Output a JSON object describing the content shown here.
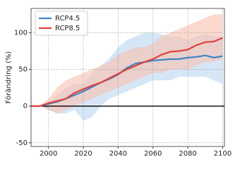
{
  "chart_data": {
    "type": "line",
    "y_label": "Förändring (%)",
    "x": [
      1990,
      1995,
      2000,
      2005,
      2010,
      2015,
      2020,
      2025,
      2030,
      2035,
      2040,
      2045,
      2050,
      2055,
      2060,
      2065,
      2070,
      2075,
      2080,
      2085,
      2090,
      2095,
      2100
    ],
    "xlim": [
      1990,
      2101
    ],
    "xticks": [
      2000,
      2020,
      2040,
      2060,
      2080,
      2100
    ],
    "ylim": [
      -55,
      133
    ],
    "yticks": [
      -50,
      0,
      50,
      100
    ],
    "grid": true,
    "legend": "upper left",
    "series": [
      {
        "name": "RCP4.5",
        "color": "#3a86c8",
        "band_color": "#b9d7f0",
        "values": [
          0,
          0,
          3,
          6,
          10,
          15,
          20,
          26,
          32,
          37,
          43,
          52,
          58,
          60,
          62,
          63,
          64,
          64,
          66,
          67,
          69,
          66,
          68
        ],
        "upper": [
          0,
          0,
          5,
          15,
          25,
          30,
          30,
          45,
          55,
          65,
          80,
          90,
          95,
          100,
          100,
          98,
          95,
          95,
          90,
          95,
          98,
          95,
          95
        ],
        "lower": [
          0,
          0,
          -5,
          -10,
          -10,
          -5,
          -20,
          -15,
          0,
          10,
          15,
          20,
          25,
          30,
          35,
          35,
          35,
          40,
          40,
          40,
          40,
          35,
          30
        ]
      },
      {
        "name": "RCP8.5",
        "color": "#e3403a",
        "band_color": "#f8bfae",
        "values": [
          0,
          0,
          4,
          7,
          10,
          18,
          23,
          28,
          32,
          38,
          44,
          50,
          55,
          60,
          64,
          70,
          74,
          75,
          77,
          83,
          87,
          88,
          93
        ],
        "upper": [
          0,
          0,
          10,
          25,
          35,
          40,
          45,
          50,
          55,
          60,
          70,
          75,
          80,
          80,
          85,
          95,
          100,
          105,
          110,
          115,
          120,
          125,
          125
        ],
        "lower": [
          0,
          0,
          -5,
          -10,
          -5,
          0,
          5,
          10,
          15,
          20,
          25,
          30,
          35,
          40,
          45,
          45,
          50,
          50,
          50,
          55,
          60,
          60,
          65
        ]
      }
    ]
  }
}
